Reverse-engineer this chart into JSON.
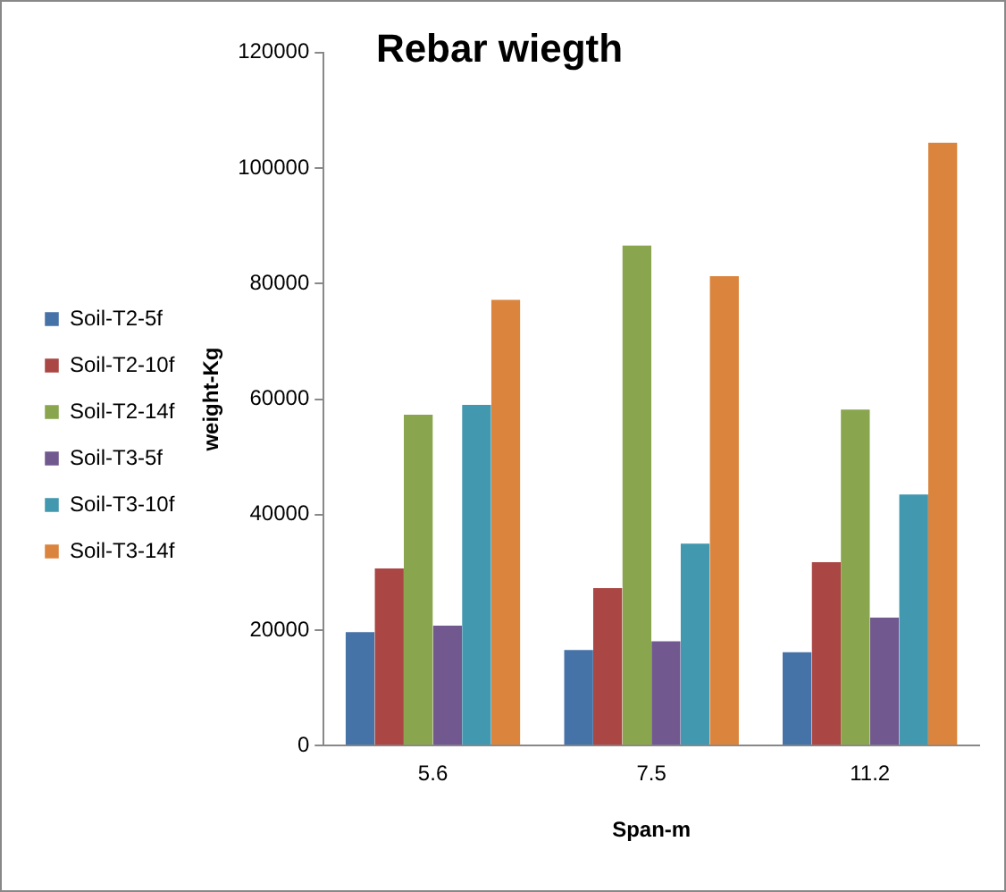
{
  "chart_data": {
    "type": "bar",
    "title": "Rebar wiegth",
    "xlabel": "Span-m",
    "ylabel": "weight-Kg",
    "categories": [
      "5.6",
      "7.5",
      "11.2"
    ],
    "series": [
      {
        "name": "Soil-T2-5f",
        "color": "#4572a7",
        "values": [
          20000,
          16900,
          16500
        ]
      },
      {
        "name": "Soil-T2-10f",
        "color": "#aa4643",
        "values": [
          31000,
          27600,
          32100
        ]
      },
      {
        "name": "Soil-T2-14f",
        "color": "#89a54e",
        "values": [
          57600,
          86900,
          58500
        ]
      },
      {
        "name": "Soil-T3-5f",
        "color": "#71588f",
        "values": [
          21100,
          18400,
          22500
        ]
      },
      {
        "name": "Soil-T3-10f",
        "color": "#4198af",
        "values": [
          59300,
          35300,
          43800
        ]
      },
      {
        "name": "Soil-T3-14f",
        "color": "#db843d",
        "values": [
          77500,
          81600,
          104700
        ]
      }
    ],
    "ylim": [
      0,
      120000
    ],
    "yticks": [
      0,
      20000,
      40000,
      60000,
      80000,
      100000,
      120000
    ],
    "grid": false,
    "legend": "left"
  }
}
